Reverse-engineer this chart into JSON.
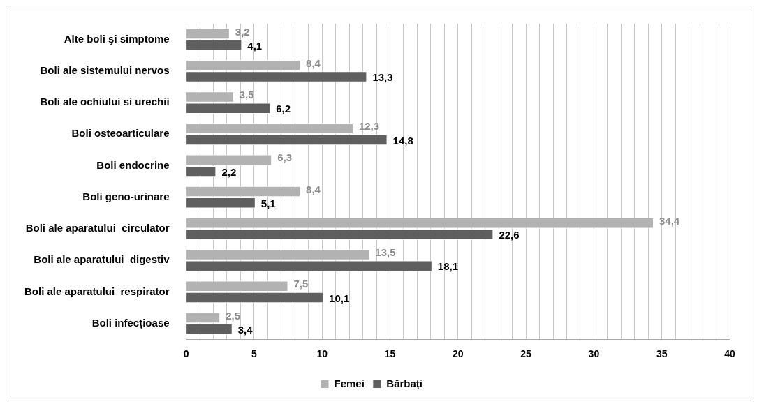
{
  "chart_data": {
    "type": "bar",
    "orientation": "horizontal",
    "categories": [
      "Alte boli şi simptome",
      "Boli ale sistemului nervos",
      "Boli ale ochiului si urechii",
      "Boli osteoarticulare",
      "Boli endocrine",
      "Boli geno-urinare",
      "Boli ale aparatului  circulator",
      "Boli ale aparatului  digestiv",
      "Boli ale aparatului  respirator",
      "Boli infecțioase"
    ],
    "series": [
      {
        "name": "Femei",
        "color": "#b2b2b2",
        "values": [
          3.2,
          8.4,
          3.5,
          12.3,
          6.3,
          8.4,
          34.4,
          13.5,
          7.5,
          2.5
        ],
        "value_labels": [
          "3,2",
          "8,4",
          "3,5",
          "12,3",
          "6,3",
          "8,4",
          "34,4",
          "13,5",
          "7,5",
          "2,5"
        ]
      },
      {
        "name": "Bărbați",
        "color": "#5f5f5f",
        "values": [
          4.1,
          13.3,
          6.2,
          14.8,
          2.2,
          5.1,
          22.6,
          18.1,
          10.1,
          3.4
        ],
        "value_labels": [
          "4,1",
          "13,3",
          "6,2",
          "14,8",
          "2,2",
          "5,1",
          "22,6",
          "18,1",
          "10,1",
          "3,4"
        ]
      }
    ],
    "xlim": [
      0,
      40
    ],
    "xticks": [
      0,
      {
        "value": 1,
        "label": null
      },
      {
        "value": 2,
        "label": null
      },
      {
        "value": 3,
        "label": null
      },
      {
        "value": 4,
        "label": null
      },
      5,
      {
        "value": 6,
        "label": null
      },
      {
        "value": 7,
        "label": null
      },
      {
        "value": 8,
        "label": null
      },
      {
        "value": 9,
        "label": null
      },
      10,
      {
        "value": 11,
        "label": null
      },
      {
        "value": 12,
        "label": null
      },
      {
        "value": 13,
        "label": null
      },
      {
        "value": 14,
        "label": null
      },
      15,
      {
        "value": 16,
        "label": null
      },
      {
        "value": 17,
        "label": null
      },
      {
        "value": 18,
        "label": null
      },
      {
        "value": 19,
        "label": null
      },
      20,
      {
        "value": 21,
        "label": null
      },
      {
        "value": 22,
        "label": null
      },
      {
        "value": 23,
        "label": null
      },
      {
        "value": 24,
        "label": null
      },
      25,
      {
        "value": 26,
        "label": null
      },
      {
        "value": 27,
        "label": null
      },
      {
        "value": 28,
        "label": null
      },
      {
        "value": 29,
        "label": null
      },
      30,
      {
        "value": 31,
        "label": null
      },
      {
        "value": 32,
        "label": null
      },
      {
        "value": 33,
        "label": null
      },
      {
        "value": 34,
        "label": null
      },
      35,
      {
        "value": 36,
        "label": null
      },
      {
        "value": 37,
        "label": null
      },
      {
        "value": 38,
        "label": null
      },
      {
        "value": 39,
        "label": null
      },
      40
    ],
    "grid": "x",
    "legend": "bottom"
  }
}
